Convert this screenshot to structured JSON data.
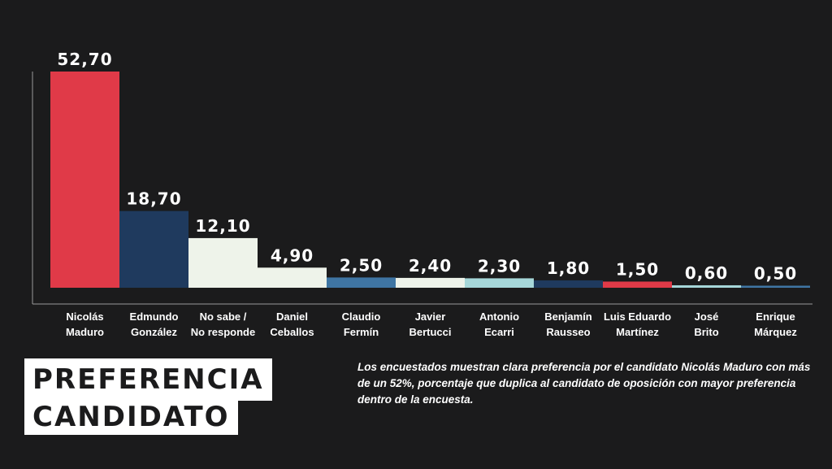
{
  "title": {
    "line1": "PREFERENCIA",
    "line2": "CANDIDATO"
  },
  "caption": "Los encuestados muestran clara preferencia por el candidato Nicolás Maduro con más de un 52%, porcentaje que duplica al candidato de oposición con mayor preferencia dentro de la encuesta.",
  "colors": {
    "background": "#1b1b1c",
    "red": "#e03a48",
    "navy": "#1f3a5e",
    "cream": "#eef3ea",
    "steel": "#3f75a3",
    "light_teal": "#a6d7d9"
  },
  "chart_data": {
    "type": "bar",
    "title": "PREFERENCIA CANDIDATO",
    "categories": [
      "Nicolás Maduro",
      "Edmundo González",
      "No sabe / No responde",
      "Daniel Ceballos",
      "Claudio Fermín",
      "Javier Bertucci",
      "Antonio Ecarri",
      "Benjamín Rausseo",
      "Luis Eduardo Martínez",
      "José Brito",
      "Enrique Márquez"
    ],
    "category_lines": [
      [
        "Nicolás",
        "Maduro"
      ],
      [
        "Edmundo",
        "González"
      ],
      [
        "No sabe /",
        "No responde"
      ],
      [
        "Daniel",
        "Ceballos"
      ],
      [
        "Claudio",
        "Fermín"
      ],
      [
        "Javier",
        "Bertucci"
      ],
      [
        "Antonio",
        "Ecarri"
      ],
      [
        "Benjamín",
        "Rausseo"
      ],
      [
        "Luis Eduardo",
        "Martínez"
      ],
      [
        "José",
        "Brito"
      ],
      [
        "Enrique",
        "Márquez"
      ]
    ],
    "values": [
      52.7,
      18.7,
      12.1,
      4.9,
      2.5,
      2.4,
      2.3,
      1.8,
      1.5,
      0.6,
      0.5
    ],
    "value_labels": [
      "52,70",
      "18,70",
      "12,10",
      "4,90",
      "2,50",
      "2,40",
      "2,30",
      "1,80",
      "1,50",
      "0,60",
      "0,50"
    ],
    "bar_colors": [
      "#e03a48",
      "#1f3a5e",
      "#eef3ea",
      "#eef3ea",
      "#3f75a3",
      "#eef3ea",
      "#a6d7d9",
      "#1f3a5e",
      "#e03a48",
      "#a6d7d9",
      "#3f75a3"
    ],
    "ylim": [
      0,
      52.7
    ],
    "xlabel": "",
    "ylabel": "",
    "grid": false,
    "legend": false
  }
}
